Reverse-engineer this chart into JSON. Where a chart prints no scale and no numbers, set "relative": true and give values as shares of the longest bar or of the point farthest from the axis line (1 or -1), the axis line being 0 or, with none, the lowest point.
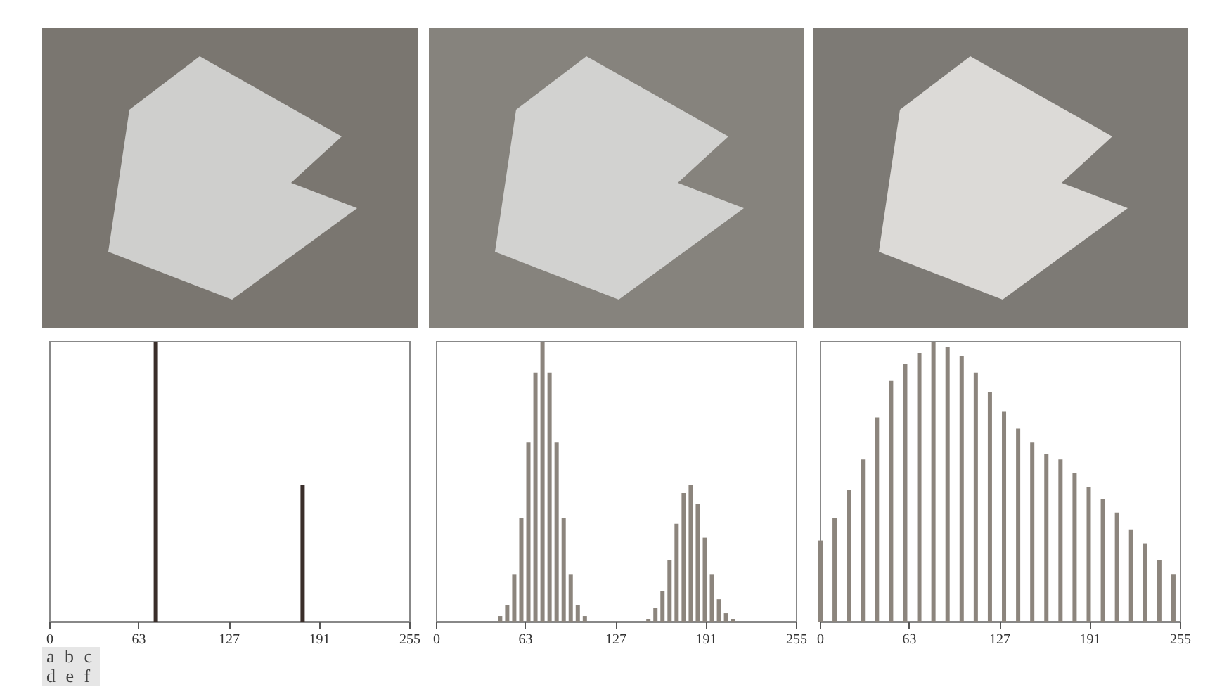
{
  "chart_data": [
    {
      "type": "bar",
      "relative": true,
      "color": "#3a2e2a",
      "xlim": [
        0,
        255
      ],
      "xticks": [
        0,
        63,
        127,
        191,
        255
      ],
      "grid": false,
      "annotations": [
        "a b c",
        "d e f"
      ],
      "x": [
        75,
        179
      ],
      "values": [
        1,
        0.49
      ]
    },
    {
      "type": "bar",
      "relative": true,
      "color": "#8c857d",
      "xlim": [
        0,
        255
      ],
      "xticks": [
        0,
        63,
        127,
        191,
        255
      ],
      "grid": false,
      "x": [
        0,
        5,
        10,
        15,
        20,
        25,
        30,
        35,
        40,
        45,
        50,
        55,
        60,
        65,
        70,
        75,
        80,
        85,
        90,
        95,
        100,
        105,
        110,
        115,
        120,
        125,
        130,
        135,
        140,
        145,
        150,
        155,
        160,
        165,
        170,
        175,
        180,
        185,
        190,
        195,
        200,
        205,
        210,
        215,
        220,
        225,
        230,
        235,
        240,
        245,
        250,
        255
      ],
      "values": [
        0,
        0,
        0,
        0,
        0,
        0,
        0,
        0,
        0,
        0.02,
        0.06,
        0.17,
        0.37,
        0.64,
        0.89,
        1,
        0.89,
        0.64,
        0.37,
        0.17,
        0.06,
        0.02,
        0,
        0,
        0,
        0,
        0,
        0,
        0,
        0,
        0.01,
        0.05,
        0.11,
        0.22,
        0.35,
        0.46,
        0.49,
        0.42,
        0.3,
        0.17,
        0.08,
        0.03,
        0.01,
        0,
        0,
        0,
        0,
        0,
        0,
        0,
        0,
        0
      ]
    },
    {
      "type": "bar",
      "relative": true,
      "color": "#8c857d",
      "xlim": [
        0,
        255
      ],
      "xticks": [
        0,
        63,
        127,
        191,
        255
      ],
      "grid": false,
      "x": [
        0,
        10,
        20,
        30,
        40,
        50,
        60,
        70,
        80,
        90,
        100,
        110,
        120,
        130,
        140,
        150,
        160,
        170,
        180,
        190,
        200,
        210,
        220,
        230,
        240,
        250
      ],
      "values": [
        0.29,
        0.37,
        0.47,
        0.58,
        0.73,
        0.86,
        0.92,
        0.96,
        1,
        0.98,
        0.95,
        0.89,
        0.82,
        0.75,
        0.69,
        0.64,
        0.6,
        0.58,
        0.53,
        0.48,
        0.44,
        0.39,
        0.33,
        0.28,
        0.22,
        0.17
      ]
    }
  ]
}
